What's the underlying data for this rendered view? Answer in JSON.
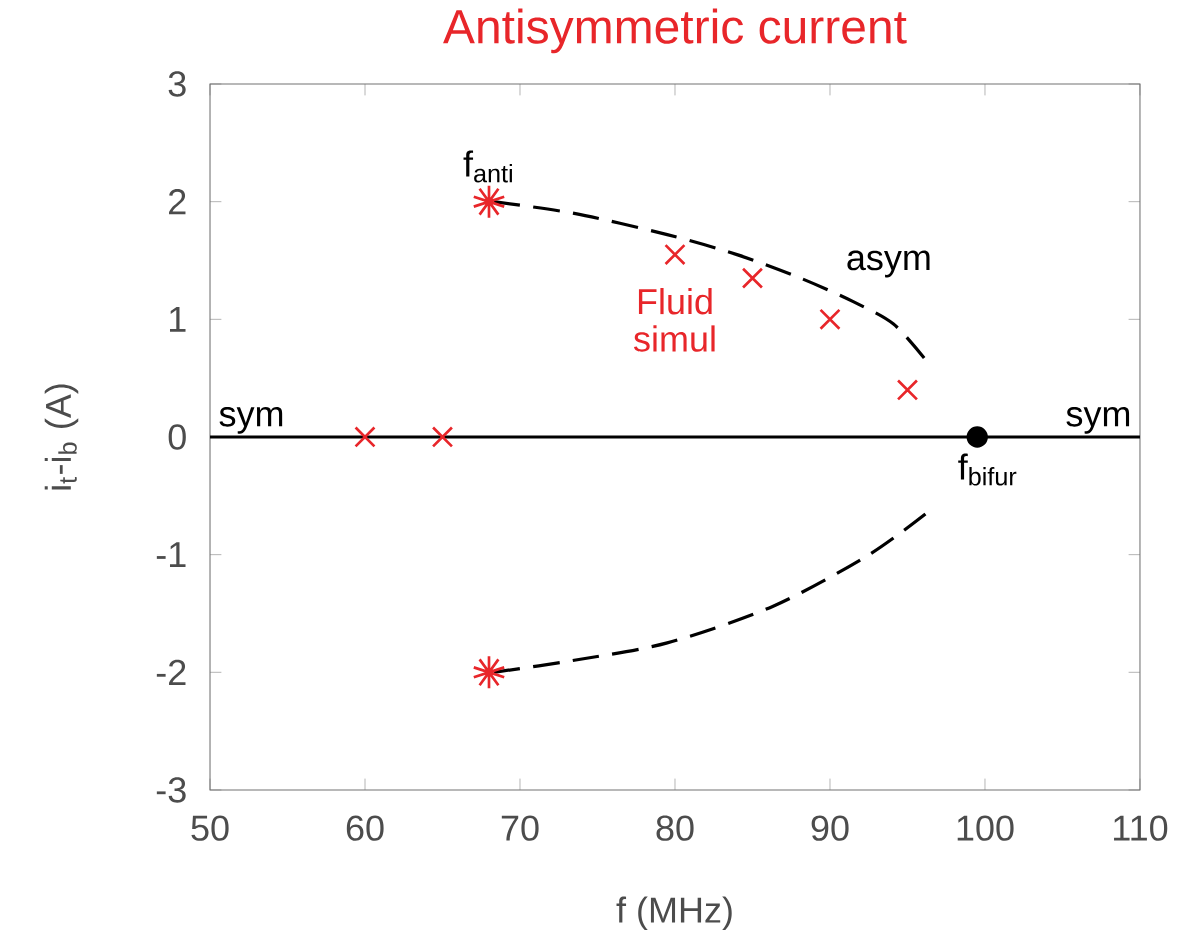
{
  "chart_data": {
    "type": "line",
    "title": "Antisymmetric current",
    "xlabel": "f (MHz)",
    "ylabel": "i$_{t}$-i$_{b}$ (A)",
    "xlim": [
      50,
      110
    ],
    "xticks": [
      50,
      60,
      70,
      80,
      90,
      100,
      110
    ],
    "ylim": [
      -3,
      3
    ],
    "yticks": [
      -3,
      -2,
      -1,
      0,
      1,
      2,
      3
    ],
    "grid": false,
    "series": [
      {
        "x": [
          50,
          110
        ],
        "values": [
          0,
          0
        ],
        "color": "#000000",
        "line_style": "solid",
        "marker": "none"
      },
      {
        "x": [
          68.3,
          73.5,
          79.5,
          84,
          88.1,
          91.5,
          94.1,
          96.2
        ],
        "values": [
          2.0,
          1.9,
          1.72,
          1.55,
          1.35,
          1.15,
          0.96,
          0.65
        ],
        "color": "#000000",
        "line_style": "dashed",
        "marker": "none"
      },
      {
        "x": [
          68.3,
          73.4,
          79.5,
          86.3,
          92.4,
          96.2
        ],
        "values": [
          -2.0,
          -1.9,
          -1.75,
          -1.44,
          -1.01,
          -0.65
        ],
        "color": "#000000",
        "line_style": "dashed",
        "marker": "none"
      },
      {
        "type": "scatter",
        "name": "Fluid simul",
        "x": [
          60,
          65,
          80,
          85,
          90,
          95
        ],
        "values": [
          0,
          0,
          1.55,
          1.35,
          1.0,
          0.4
        ],
        "color": "#e8262a",
        "marker": "cross"
      },
      {
        "type": "scatter",
        "x": [
          68,
          68
        ],
        "values": [
          2,
          -2
        ],
        "color": "#e8262a"
      },
      {
        "type": "scatter",
        "x": [
          99.5
        ],
        "values": [
          0
        ],
        "color": "#000000",
        "marker": "circle"
      }
    ],
    "annotations": [
      {
        "text": "f$_{anti}$",
        "x": 68,
        "y": 2
      },
      {
        "text": "f$_{bifur}$",
        "x": 99.5,
        "y": 0
      },
      {
        "text": "sym",
        "x": 50,
        "y": 0
      },
      {
        "text": "sym",
        "x": 110,
        "y": 0
      },
      "asym"
    ]
  }
}
